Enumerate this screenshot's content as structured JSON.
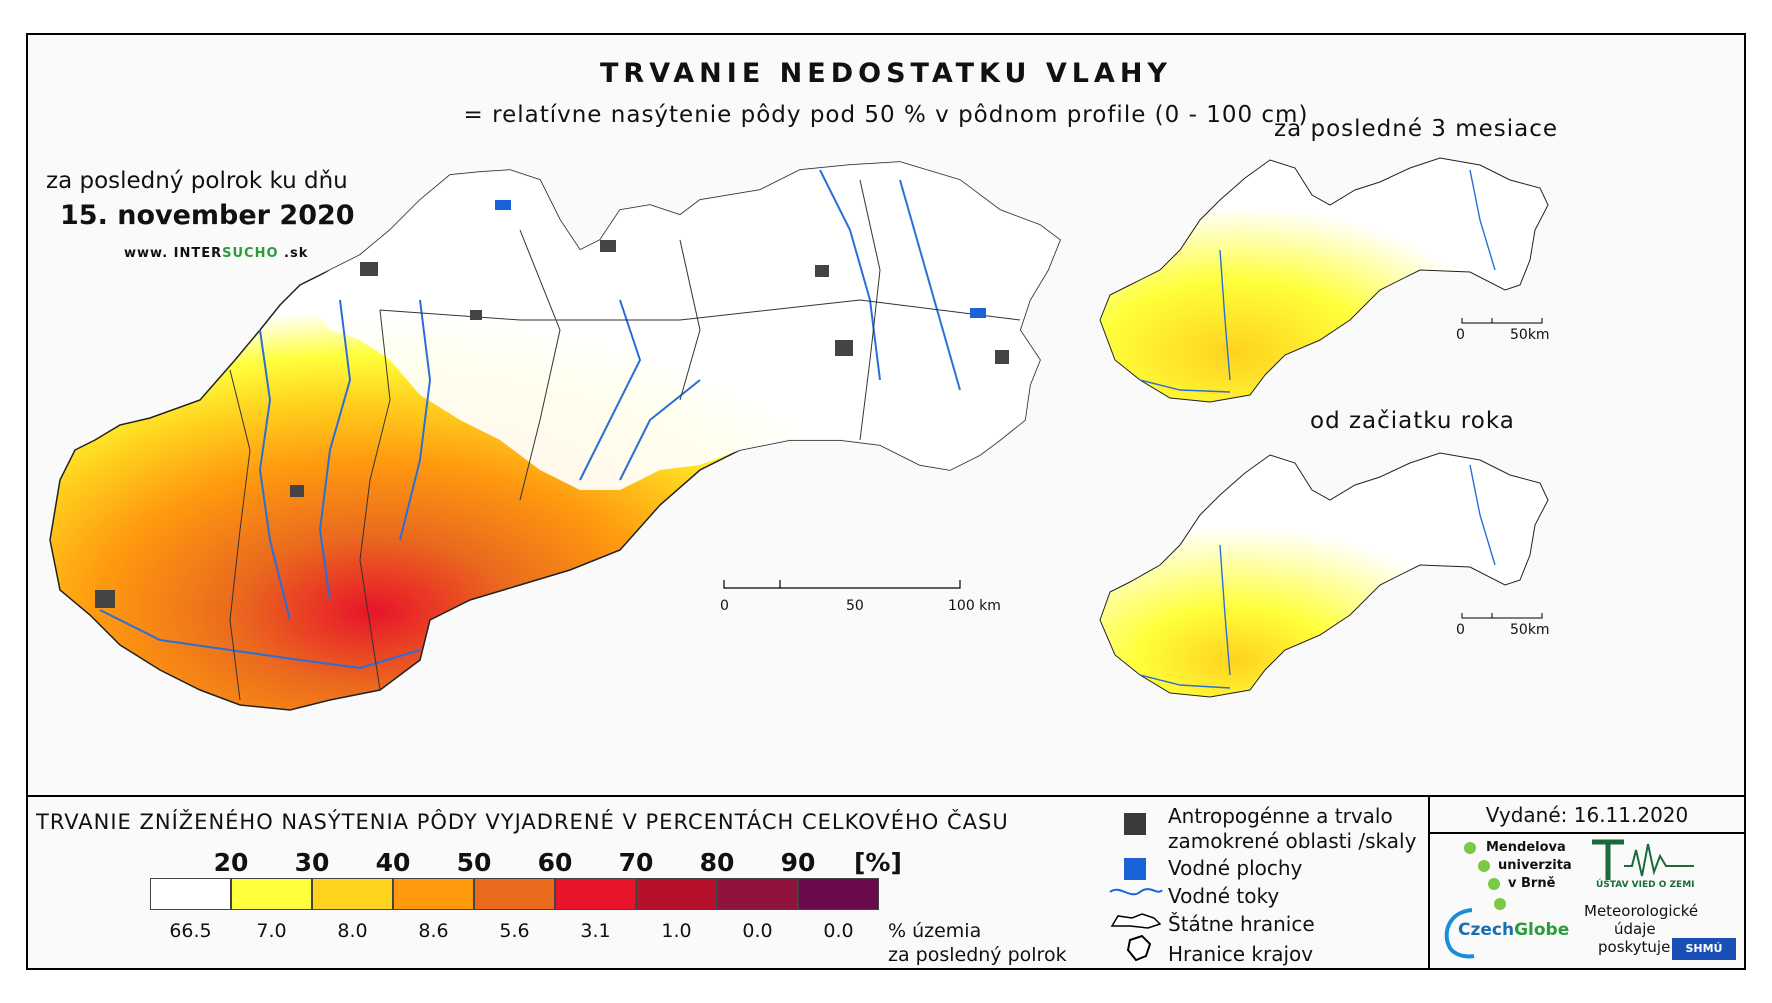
{
  "title": "TRVANIE NEDOSTATKU VLAHY",
  "subtitle": "= relatívne nasýtenie pôdy pod 50 % v pôdnom profile (0 - 100 cm)",
  "main_map": {
    "period_label": "za posledný polrok ku dňu",
    "date": "15. november 2020",
    "website_prefix": "www. INTER",
    "website_highlight": "SUCHO",
    "website_suffix": " .sk",
    "scale": [
      "0",
      "50",
      "100 km"
    ]
  },
  "inset_3m": {
    "label": "za posledné 3 mesiace",
    "scale": [
      "0",
      "50km"
    ]
  },
  "inset_ytd": {
    "label": "od začiatku roka",
    "scale": [
      "0",
      "50km"
    ]
  },
  "legend": {
    "title": "TRVANIE ZNÍŽENÉHO NASÝTENIA PÔDY VYJADRENÉ V PERCENTÁCH CELKOVÉHO ČASU",
    "thresholds": [
      "20",
      "30",
      "40",
      "50",
      "60",
      "70",
      "80",
      "90"
    ],
    "unit": "[%]",
    "colors": [
      "#ffffff",
      "#ffff3c",
      "#ffd21e",
      "#ff9a0f",
      "#ea6a1e",
      "#e8142a",
      "#b5102c",
      "#90123e",
      "#6a0a4c"
    ],
    "territory_share": [
      "66.5",
      "7.0",
      "8.0",
      "8.6",
      "5.6",
      "3.1",
      "1.0",
      "0.0",
      "0.0"
    ],
    "share_label_1": "% územia",
    "share_label_2": "za posledný polrok"
  },
  "map_legend": {
    "anthropogenic_1": "Antropogénne a trvalo",
    "anthropogenic_2": "zamokrené oblasti /skaly",
    "water_bodies": "Vodné plochy",
    "water_streams": "Vodné toky",
    "state_borders": "Štátne hranice",
    "region_borders": "Hranice krajov"
  },
  "issued": "Vydané: 16.11.2020",
  "logos": {
    "mendelu_1": "Mendelova",
    "mendelu_2": "univerzita",
    "mendelu_3": "v Brně",
    "ustav": "ÚSTAV VIED O ZEMI",
    "czechglobe_1": "Czech",
    "czechglobe_2": "Globe",
    "meteo_1": "Meteorologické",
    "meteo_2": "údaje",
    "meteo_3": "poskytuje:",
    "shmu": "SHMÚ"
  }
}
